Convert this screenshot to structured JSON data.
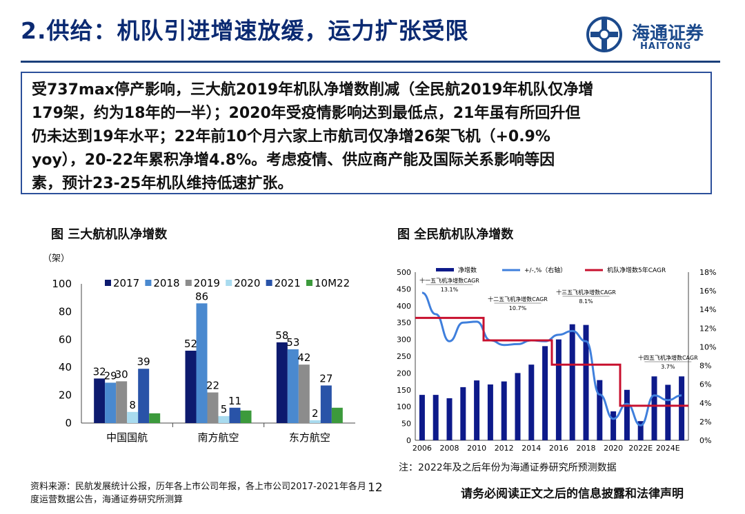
{
  "header": {
    "title": "2.供给：机队引进增速放缓，运力扩张受限"
  },
  "logo": {
    "name_cn": "海通证券",
    "name_en": "HAITONG",
    "icon": "haitong-logo-icon"
  },
  "summary": {
    "lines": [
      "受737max停产影响，三大航2019年机队净增数削减（全民航2019年机队仅净增",
      "179架，约为18年的一半）；2020年受疫情影响达到最低点，21年虽有所回升但",
      "仍未达到19年水平；22年前10个月六家上市航司仅净增26架飞机（+0.9%",
      "yoy），20-22年累积净增4.8%。考虑疫情、供应商产能及国际关系影响等因",
      "素，预计23-25年机队维持低速扩张。"
    ]
  },
  "chart_data": [
    {
      "type": "bar",
      "title": "图 三大航机队净增数",
      "ylabel": "（架）",
      "categories": [
        "中国国航",
        "南方航空",
        "东方航空"
      ],
      "ylim": [
        0,
        100
      ],
      "yticks": [
        0,
        20,
        40,
        60,
        80,
        100
      ],
      "legend_position": "top",
      "series": [
        {
          "name": "2017",
          "color": "#0d1a6e",
          "values": [
            32,
            52,
            58
          ]
        },
        {
          "name": "2018",
          "color": "#4a89cf",
          "values": [
            29,
            86,
            53
          ]
        },
        {
          "name": "2019",
          "color": "#8c8c8c",
          "values": [
            30,
            22,
            42
          ]
        },
        {
          "name": "2020",
          "color": "#a9dbef",
          "values": [
            8,
            5,
            2
          ]
        },
        {
          "name": "2021",
          "color": "#2953a8",
          "values": [
            39,
            11,
            27
          ]
        },
        {
          "name": "10M22",
          "color": "#3c9a3c",
          "values": [
            7,
            9,
            11
          ]
        }
      ],
      "data_labels": [
        {
          "series": "2017",
          "category": "中国国航",
          "text": "32"
        },
        {
          "series": "2018",
          "category": "中国国航",
          "text": "29"
        },
        {
          "series": "2019",
          "category": "中国国航",
          "text": "30"
        },
        {
          "series": "2020",
          "category": "中国国航",
          "text": "8"
        },
        {
          "series": "2021",
          "category": "中国国航",
          "text": "39"
        },
        {
          "series": "2017",
          "category": "南方航空",
          "text": "52"
        },
        {
          "series": "2018",
          "category": "南方航空",
          "text": "86"
        },
        {
          "series": "2019",
          "category": "南方航空",
          "text": "22"
        },
        {
          "series": "2020",
          "category": "南方航空",
          "text": "5"
        },
        {
          "series": "2021",
          "category": "南方航空",
          "text": "11"
        },
        {
          "series": "2017",
          "category": "东方航空",
          "text": "58"
        },
        {
          "series": "2018",
          "category": "东方航空",
          "text": "53"
        },
        {
          "series": "2019",
          "category": "东方航空",
          "text": "42"
        },
        {
          "series": "2020",
          "category": "东方航空",
          "text": "2"
        },
        {
          "series": "2021",
          "category": "东方航空",
          "text": "27"
        }
      ]
    },
    {
      "type": "bar",
      "title": "图 全民航机队净增数",
      "x": [
        "2006",
        "2007",
        "2008",
        "2009",
        "2010",
        "2011",
        "2012",
        "2013",
        "2014",
        "2015",
        "2016",
        "2017",
        "2018",
        "2019",
        "2020",
        "2021",
        "2022E",
        "2023E",
        "2024E",
        "2025E"
      ],
      "xticks": [
        "2006",
        "2008",
        "2010",
        "2012",
        "2014",
        "2016",
        "2018",
        "2020",
        "2022E",
        "2024E"
      ],
      "ylim": [
        0,
        500
      ],
      "yticks": [
        0,
        50,
        100,
        150,
        200,
        250,
        300,
        350,
        400,
        450,
        500
      ],
      "y2lim": [
        0,
        18
      ],
      "y2ticks": [
        "0%",
        "2%",
        "4%",
        "6%",
        "8%",
        "10%",
        "12%",
        "14%",
        "16%",
        "18%"
      ],
      "legend_position": "top",
      "series": [
        {
          "name": "净增数",
          "kind": "bar",
          "axis": "left",
          "color": "#0d1a8a",
          "values": [
            135,
            135,
            125,
            158,
            178,
            166,
            175,
            200,
            225,
            280,
            300,
            345,
            343,
            179,
            86,
            150,
            57,
            190,
            165,
            190
          ]
        },
        {
          "name": "+/-,%（右轴）",
          "kind": "line",
          "axis": "right",
          "color": "#3f7fdc",
          "values": [
            15.8,
            13.5,
            10.6,
            12.6,
            12.7,
            10.7,
            10.2,
            10.3,
            10.7,
            10.6,
            11.3,
            11.7,
            10.6,
            4.9,
            2.3,
            3.9,
            1.6,
            4.8,
            4.3,
            4.8
          ]
        },
        {
          "name": "机队净增数5年CAGR",
          "kind": "step",
          "axis": "left",
          "color": "#c8102e",
          "segments": [
            {
              "from": "2006",
              "to": "2010",
              "value": 13.1
            },
            {
              "from": "2011",
              "to": "2015",
              "value": 10.7
            },
            {
              "from": "2016",
              "to": "2020",
              "value": 8.1
            },
            {
              "from": "2021",
              "to": "2025E",
              "value": 3.7
            }
          ]
        }
      ],
      "annotations": [
        {
          "label": "十一五飞机净增数CAGR",
          "value": "13.1%"
        },
        {
          "label": "十二五飞机净增数CAGR",
          "value": "10.7%"
        },
        {
          "label": "十三五飞机净增数CAGR",
          "value": "8.1%"
        },
        {
          "label": "十四五飞机净增数CAGR",
          "value": "3.7%"
        }
      ],
      "note": "注：2022年及之后年份为海通证券研究所预测数据"
    }
  ],
  "footer": {
    "source": "资料来源：民航发展统计公报，历年各上市公司年报，各上市公司2017-2021年各月度运营数据公告，海通证券研究所测算",
    "page": "12",
    "disclaimer": "请务必阅读正文之后的信息披露和法律声明"
  }
}
